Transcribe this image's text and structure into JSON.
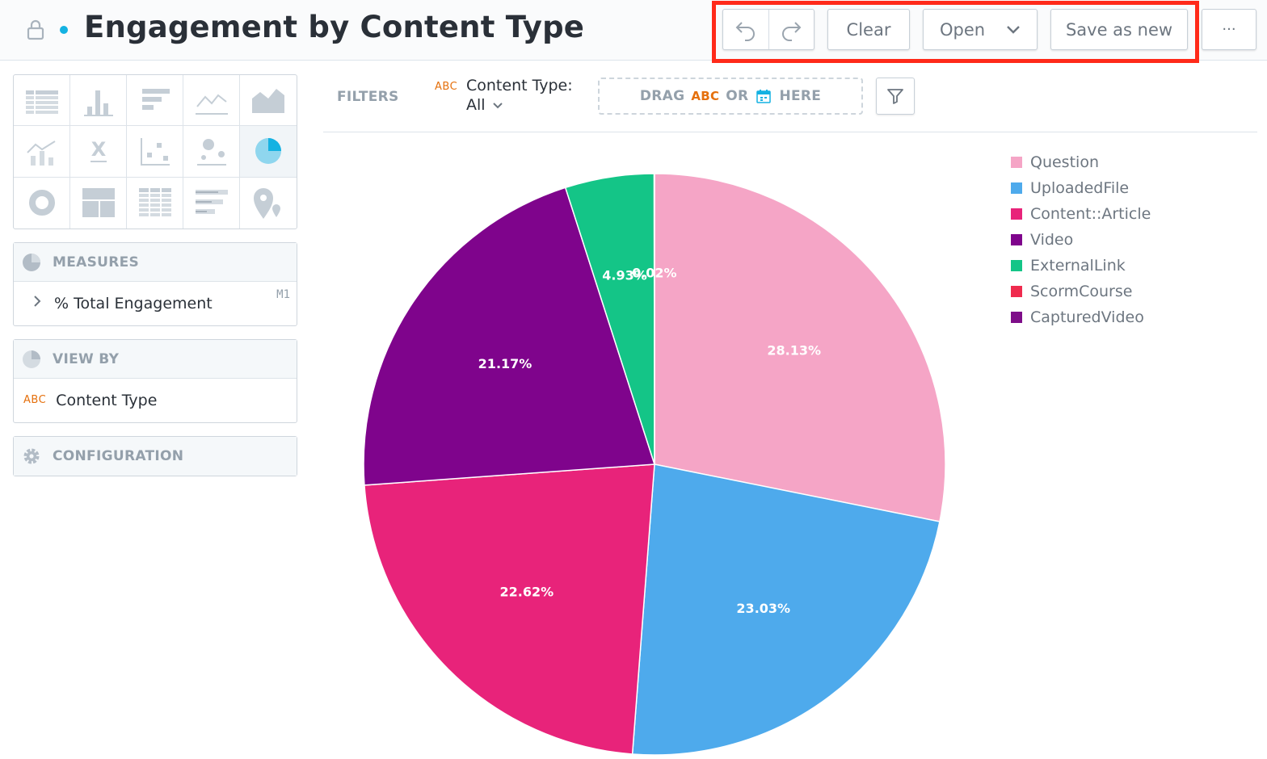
{
  "header": {
    "title": "Engagement by Content Type",
    "buttons": {
      "clear": "Clear",
      "open": "Open",
      "save_as_new": "Save as new",
      "more": "···"
    }
  },
  "visualizations": {
    "selected": "pie",
    "types": [
      "table",
      "column",
      "bar",
      "line",
      "area",
      "combo",
      "headline",
      "scatter",
      "bubble",
      "pie",
      "donut",
      "treemap",
      "heatmap",
      "bullet",
      "geo"
    ]
  },
  "measures": {
    "label": "MEASURES",
    "items": [
      {
        "name": "% Total Engagement",
        "tag": "M1"
      }
    ]
  },
  "view_by": {
    "label": "VIEW BY",
    "items": [
      {
        "type": "ABC",
        "name": "Content Type"
      }
    ]
  },
  "configuration": {
    "label": "CONFIGURATION"
  },
  "filters": {
    "label": "FILTERS",
    "items": [
      {
        "type": "ABC",
        "name": "Content Type:",
        "value": "All"
      }
    ],
    "drop_zone": {
      "drag": "DRAG",
      "abc": "ABC",
      "or": "OR",
      "here": "HERE"
    }
  },
  "colors": {
    "accent": "#14b2e2",
    "attribute": "#e5700d",
    "highlight": "#ff2a1a"
  },
  "chart_data": {
    "type": "pie",
    "categories": [
      "Question",
      "UploadedFile",
      "Content::Article",
      "Video",
      "ExternalLink",
      "ScormCourse",
      "CapturedVideo"
    ],
    "values": [
      28.13,
      23.03,
      22.62,
      21.17,
      4.93,
      0.02,
      0.0
    ],
    "labels": [
      "28.13%",
      "23.03%",
      "22.62%",
      "21.17%",
      "4.93%",
      "0.02%",
      ""
    ],
    "colors": [
      "#f5a5c6",
      "#4eaaec",
      "#e8237a",
      "#7f048c",
      "#14c587",
      "#ef2b4e",
      "#7e0d89"
    ],
    "legend": "top-right"
  }
}
